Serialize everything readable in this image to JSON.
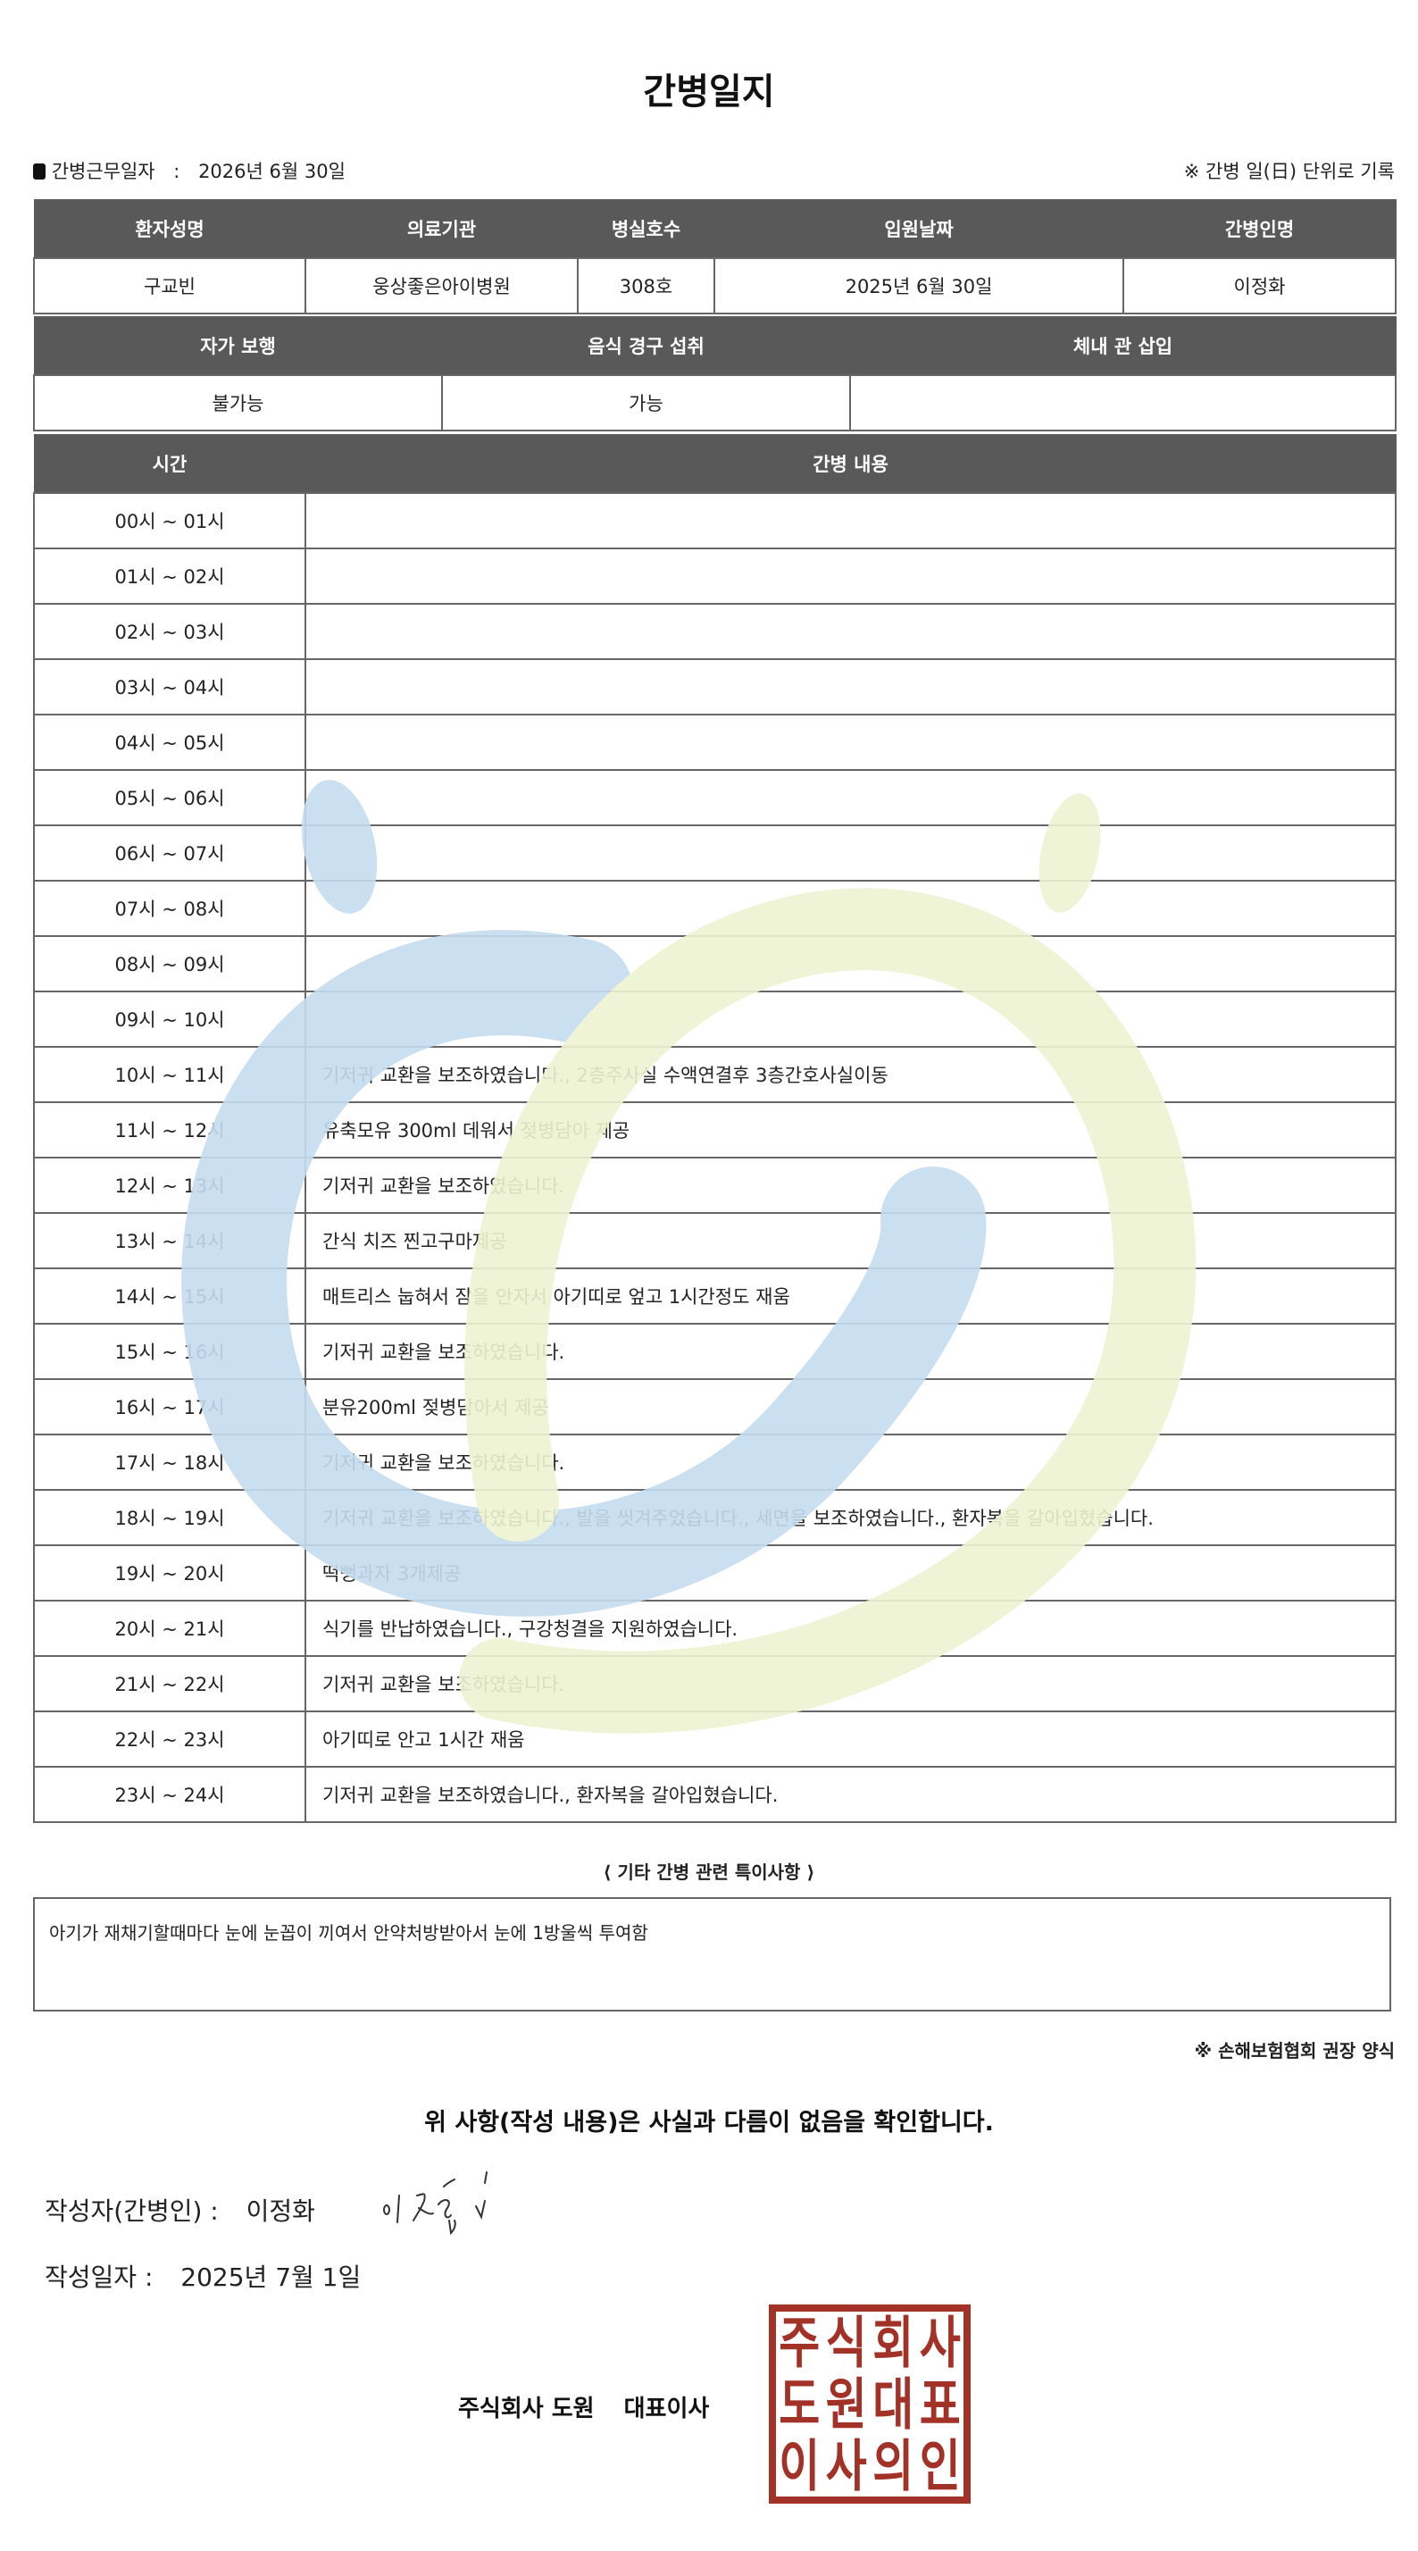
{
  "title": "간병일지",
  "meta": {
    "bullet_icon": "square-bullet",
    "work_date_label": "간병근무일자",
    "separator": ":",
    "work_date": "2026년 6월 30일",
    "note": "※ 간병 일(日) 단위로 기록"
  },
  "info_table": {
    "headers": [
      "환자성명",
      "의료기관",
      "병실호수",
      "입원날짜",
      "간병인명"
    ],
    "values": [
      "구교빈",
      "웅상좋은아이병원",
      "308호",
      "2025년 6월 30일",
      "이정화"
    ]
  },
  "status_table": {
    "headers": [
      "자가 보행",
      "음식 경구 섭취",
      "체내 관 삽입"
    ],
    "values": [
      "불가능",
      "가능",
      ""
    ]
  },
  "log_table": {
    "headers": [
      "시간",
      "간병 내용"
    ],
    "rows": [
      {
        "time": "00시 ~ 01시",
        "content": ""
      },
      {
        "time": "01시 ~ 02시",
        "content": ""
      },
      {
        "time": "02시 ~ 03시",
        "content": ""
      },
      {
        "time": "03시 ~ 04시",
        "content": ""
      },
      {
        "time": "04시 ~ 05시",
        "content": ""
      },
      {
        "time": "05시 ~ 06시",
        "content": ""
      },
      {
        "time": "06시 ~ 07시",
        "content": ""
      },
      {
        "time": "07시 ~ 08시",
        "content": ""
      },
      {
        "time": "08시 ~ 09시",
        "content": ""
      },
      {
        "time": "09시 ~ 10시",
        "content": ""
      },
      {
        "time": "10시 ~ 11시",
        "content": "기저귀 교환을 보조하였습니다., 2층주사실 수액연결후 3층간호사실이동"
      },
      {
        "time": "11시 ~ 12시",
        "content": "유축모유 300ml 데워서 젖병담아 제공"
      },
      {
        "time": "12시 ~ 13시",
        "content": "기저귀 교환을 보조하였습니다."
      },
      {
        "time": "13시 ~ 14시",
        "content": "간식 치즈 찐고구마제공"
      },
      {
        "time": "14시 ~ 15시",
        "content": "매트리스 눕혀서 잠을 안자서 아기띠로 엎고 1시간정도 재움"
      },
      {
        "time": "15시 ~ 16시",
        "content": "기저귀 교환을 보조하였습니다."
      },
      {
        "time": "16시 ~ 17시",
        "content": "분유200ml 젖병담아서 제공"
      },
      {
        "time": "17시 ~ 18시",
        "content": "기저귀 교환을 보조하였습니다."
      },
      {
        "time": "18시 ~ 19시",
        "content": "기저귀 교환을 보조하였습니다., 발을 씻겨주었습니다., 세면을 보조하였습니다., 환자복을 갈아입혔습니다."
      },
      {
        "time": "19시 ~ 20시",
        "content": "떡뻥과자 3개제공"
      },
      {
        "time": "20시 ~ 21시",
        "content": "식기를 반납하였습니다., 구강청결을 지원하였습니다."
      },
      {
        "time": "21시 ~ 22시",
        "content": "기저귀 교환을 보조하였습니다."
      },
      {
        "time": "22시 ~ 23시",
        "content": "아기띠로 안고 1시간 재움"
      },
      {
        "time": "23시 ~ 24시",
        "content": "기저귀 교환을 보조하였습니다., 환자복을 갈아입혔습니다."
      }
    ]
  },
  "notes": {
    "title": "⟨ 기타 간병 관련 특이사항 ⟩",
    "content": "아기가 재채기할때마다 눈에 눈꼽이 끼여서 안약처방받아서 눈에 1방울씩 투여함"
  },
  "footnote": "※ 손해보험협회 권장 양식",
  "confirmation": "위 사항(작성 내용)은 사실과 다름이 없음을 확인합니다.",
  "writer": {
    "label": "작성자(간병인) :",
    "name": "이정화",
    "signature": "이정화"
  },
  "written_date": {
    "label": "작성일자 :",
    "value": "2025년 7월 1일"
  },
  "company": {
    "name": "주식회사 도원",
    "title": "대표이사"
  },
  "stamp": {
    "text": "주식회사도원대표이사의인",
    "color": "#a23127"
  },
  "colors": {
    "header_bg": "#595959",
    "watermark_blue": "#c5dcef",
    "watermark_green": "#eef3d2"
  }
}
